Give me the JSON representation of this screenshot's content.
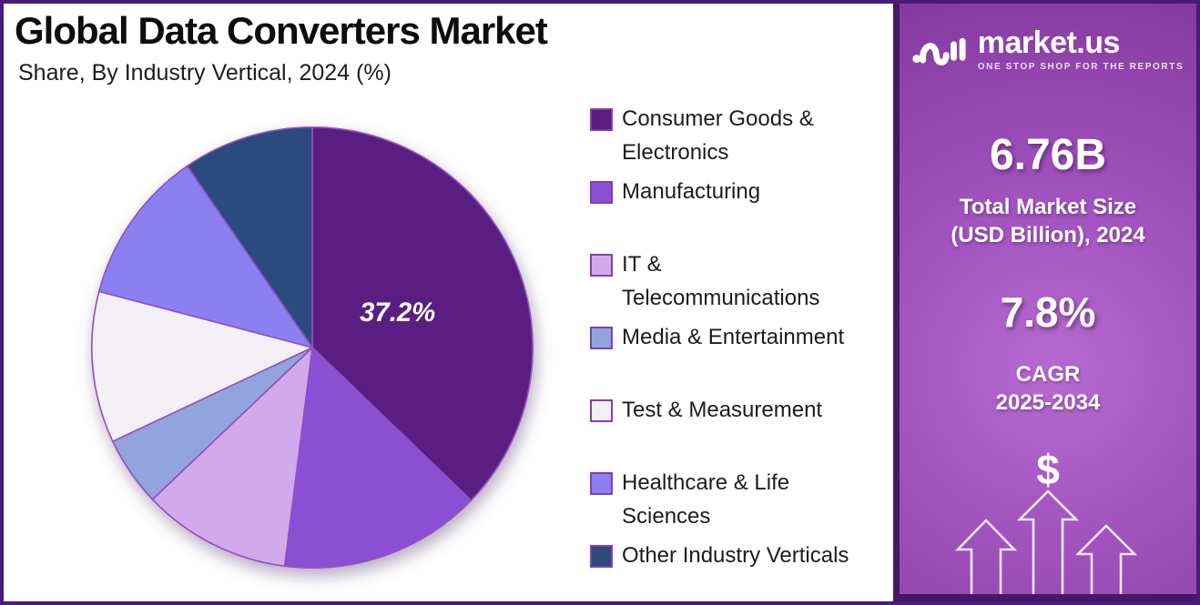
{
  "header": {
    "title": "Global Data Converters Market",
    "subtitle": "Share, By Industry Vertical, 2024 (%)"
  },
  "chart_data": {
    "type": "pie",
    "title": "Global Data Converters Market",
    "subtitle": "Share, By Industry Vertical, 2024 (%)",
    "unit": "%",
    "categories": [
      "Consumer Goods & Electronics",
      "Manufacturing",
      "IT & Telecommunications",
      "Media & Entertainment",
      "Test & Measurement",
      "Healthcare & Life Sciences",
      "Other Industry Verticals"
    ],
    "values": [
      37.2,
      14.8,
      10.9,
      5.1,
      11.1,
      11.3,
      9.6
    ],
    "slice_labels": [
      "37.2%",
      "",
      "",
      "",
      "",
      "",
      ""
    ],
    "colors": [
      "#5a1e82",
      "#8a4fd3",
      "#d2a9eb",
      "#91a5dc",
      "#f2f0f4",
      "#8b80f2",
      "#2b4a7e"
    ],
    "slice_stroke": "#9350c5",
    "swatch_border": "#8040b0",
    "legend_position": "right",
    "start_angle_deg": 0,
    "direction": "clockwise",
    "legend_lines": [
      [
        "Consumer Goods &",
        "Electronics"
      ],
      [
        "Manufacturing"
      ],
      [
        "IT &",
        "Telecommunications"
      ],
      [
        "Media & Entertainment"
      ],
      [
        "Test & Measurement"
      ],
      [
        "Healthcare & Life",
        "Sciences"
      ],
      [
        "Other Industry Verticals"
      ]
    ]
  },
  "sidebar": {
    "brand": {
      "name": "market.us",
      "tagline": "ONE STOP SHOP FOR THE REPORTS"
    },
    "market_size": {
      "value": "6.76B",
      "label": [
        "Total Market Size",
        "(USD Billion), 2024"
      ]
    },
    "cagr": {
      "value": "7.8%",
      "label": [
        "CAGR",
        "2025-2034"
      ]
    },
    "dollar_symbol": "$"
  }
}
